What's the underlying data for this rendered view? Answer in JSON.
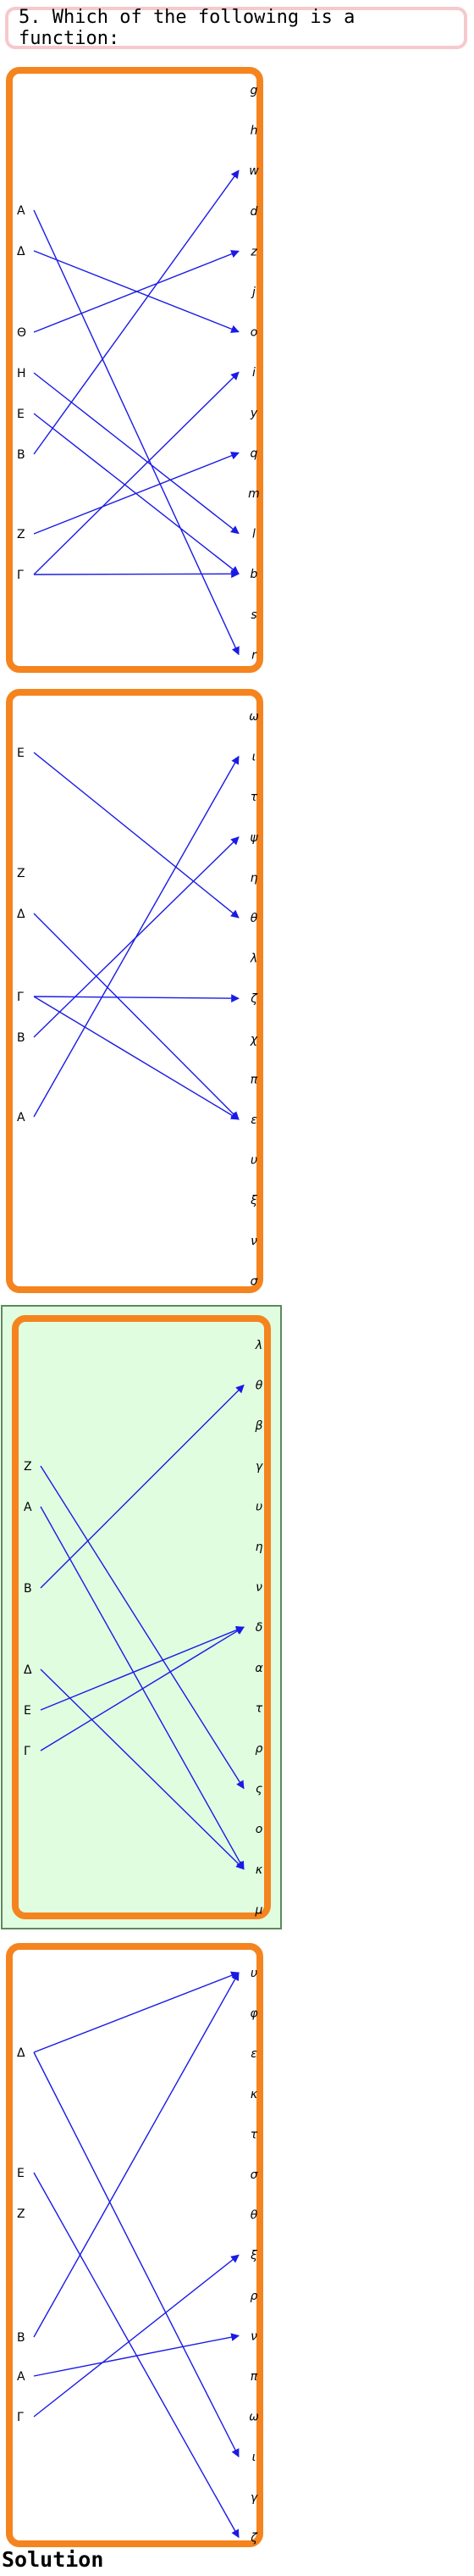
{
  "question": {
    "text": "5. Which of the following is a function:"
  },
  "correct_option_index": 2,
  "solution_label": "Solution",
  "colors": {
    "panel_border": "#f5841e",
    "arrow": "#1a1ae6",
    "highlight_bg": "#e0fde0",
    "question_border": "#f6c9cc"
  },
  "options": [
    {
      "domain": [
        "Α",
        "Δ",
        "Θ",
        "Η",
        "Ε",
        "Β",
        "Ζ",
        "Γ"
      ],
      "codomain": [
        "g",
        "h",
        "w",
        "d",
        "z",
        "j",
        "o",
        "i",
        "y",
        "q",
        "m",
        "l",
        "b",
        "s",
        "r"
      ],
      "mappings": [
        [
          "Α",
          "r"
        ],
        [
          "Δ",
          "o"
        ],
        [
          "Θ",
          "z"
        ],
        [
          "Η",
          "l"
        ],
        [
          "Ε",
          "b"
        ],
        [
          "Β",
          "w"
        ],
        [
          "Ζ",
          "q"
        ],
        [
          "Γ",
          "i"
        ],
        [
          "Γ",
          "b"
        ]
      ]
    },
    {
      "domain": [
        "Ε",
        "Ζ",
        "Δ",
        "Γ",
        "Β",
        "Α"
      ],
      "codomain": [
        "ω",
        "ι",
        "τ",
        "ψ",
        "η",
        "θ",
        "λ",
        "ζ",
        "χ",
        "π",
        "ε",
        "υ",
        "ξ",
        "ν",
        "σ"
      ],
      "mappings": [
        [
          "Ε",
          "θ"
        ],
        [
          "Δ",
          "ε"
        ],
        [
          "Γ",
          "ζ"
        ],
        [
          "Γ",
          "ε"
        ],
        [
          "Β",
          "ψ"
        ],
        [
          "Α",
          "ι"
        ]
      ]
    },
    {
      "domain": [
        "Ζ",
        "Α",
        "Β",
        "Δ",
        "Ε",
        "Γ"
      ],
      "codomain": [
        "λ",
        "θ",
        "β",
        "γ",
        "υ",
        "η",
        "ν",
        "δ",
        "α",
        "τ",
        "ρ",
        "ς",
        "ο",
        "κ",
        "μ"
      ],
      "mappings": [
        [
          "Ζ",
          "ς"
        ],
        [
          "Α",
          "κ"
        ],
        [
          "Β",
          "θ"
        ],
        [
          "Δ",
          "κ"
        ],
        [
          "Ε",
          "δ"
        ],
        [
          "Γ",
          "δ"
        ]
      ]
    },
    {
      "domain": [
        "Δ",
        "Ε",
        "Ζ",
        "Β",
        "Α",
        "Γ"
      ],
      "codomain": [
        "υ",
        "φ",
        "ε",
        "κ",
        "τ",
        "σ",
        "θ",
        "ξ",
        "ρ",
        "ν",
        "π",
        "ω",
        "ι",
        "γ",
        "ζ"
      ],
      "mappings": [
        [
          "Δ",
          "υ"
        ],
        [
          "Δ",
          "ι"
        ],
        [
          "Ε",
          "ζ"
        ],
        [
          "Β",
          "υ"
        ],
        [
          "Α",
          "ν"
        ],
        [
          "Γ",
          "ξ"
        ]
      ]
    }
  ]
}
